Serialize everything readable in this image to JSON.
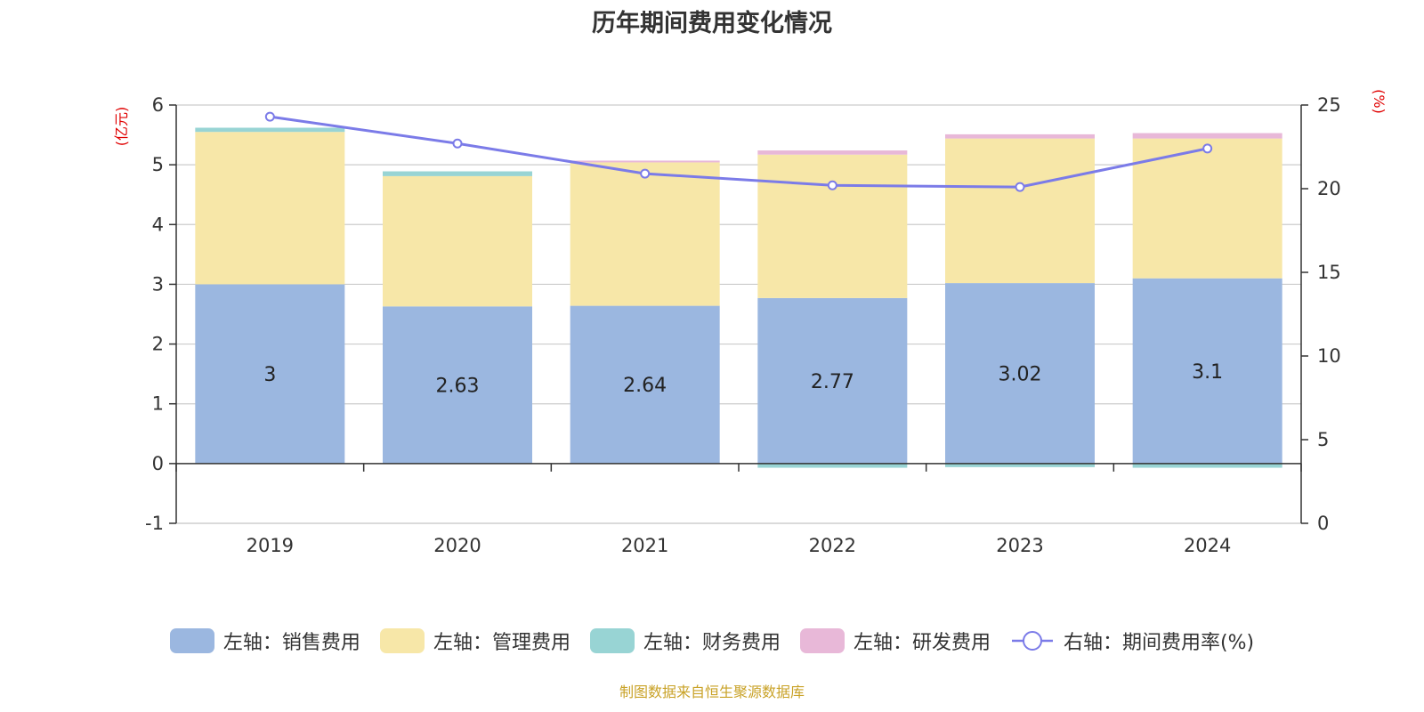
{
  "chart_data": {
    "type": "bar",
    "title": "历年期间费用变化情况",
    "categories": [
      "2019",
      "2020",
      "2021",
      "2022",
      "2023",
      "2024"
    ],
    "left_axis": {
      "unit": "(亿元)",
      "ylim": [
        -1,
        6
      ],
      "ticks": [
        "6",
        "5",
        "4",
        "3",
        "2",
        "1",
        "0",
        "-1"
      ]
    },
    "right_axis": {
      "unit": "(%)",
      "ylim": [
        0,
        25
      ],
      "ticks": [
        "25",
        "20",
        "15",
        "10",
        "5",
        "0"
      ]
    },
    "grid": true,
    "stacked": true,
    "series": [
      {
        "name": "左轴：销售费用",
        "type": "bar",
        "color": "#9bb7e0",
        "values": [
          3.0,
          2.63,
          2.64,
          2.77,
          3.02,
          3.1
        ],
        "labels": [
          "3",
          "2.63",
          "2.64",
          "2.77",
          "3.02",
          "3.1"
        ]
      },
      {
        "name": "左轴：管理费用",
        "type": "bar",
        "color": "#f7e7a8",
        "values": [
          2.55,
          2.18,
          2.4,
          2.4,
          2.42,
          2.34
        ]
      },
      {
        "name": "左轴：财务费用",
        "type": "bar",
        "color": "#98d4d4",
        "values": [
          0.07,
          0.08,
          0.0,
          -0.07,
          -0.06,
          -0.07
        ]
      },
      {
        "name": "左轴：研发费用",
        "type": "bar",
        "color": "#e8b8d8",
        "values": [
          0.0,
          0.0,
          0.03,
          0.07,
          0.07,
          0.09
        ]
      },
      {
        "name": "右轴：期间费用率(%)",
        "type": "line",
        "axis": "right",
        "color": "#7b7be8",
        "values": [
          24.3,
          22.7,
          20.9,
          20.2,
          20.1,
          22.4
        ]
      }
    ],
    "legend_position": "bottom"
  },
  "footer": {
    "source": "制图数据来自恒生聚源数据库"
  }
}
